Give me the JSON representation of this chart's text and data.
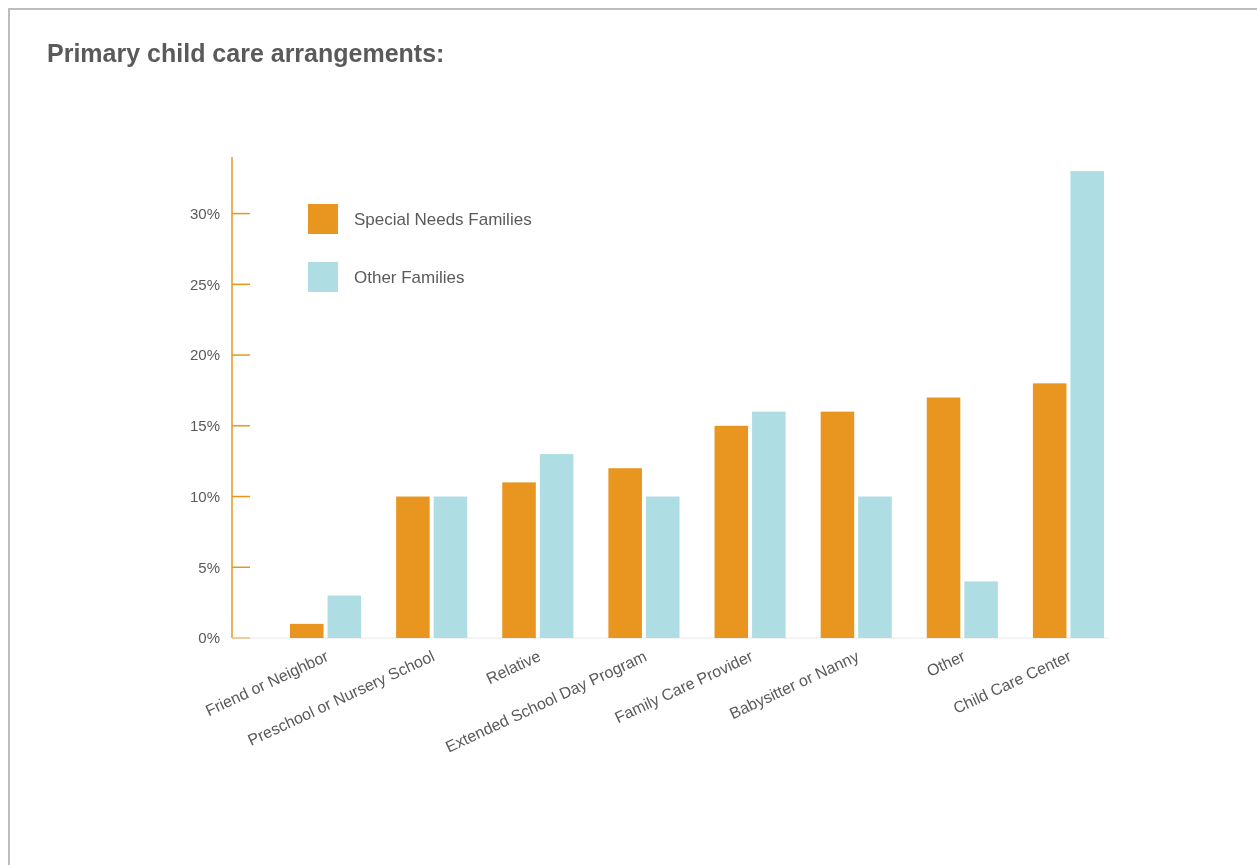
{
  "chart_data": {
    "type": "bar",
    "title": "Primary child care arrangements:",
    "categories": [
      "Friend or Neighbor",
      "Preschool or Nursery School",
      "Relative",
      "Extended School Day Program",
      "Family Care Provider",
      "Babysitter or Nanny",
      "Other",
      "Child Care Center"
    ],
    "series": [
      {
        "name": "Special Needs Families",
        "color": "#e8961f",
        "values": [
          1,
          10,
          11,
          12,
          15,
          16,
          17,
          18
        ]
      },
      {
        "name": "Other Families",
        "color": "#aedde3",
        "values": [
          3,
          10,
          13,
          10,
          16,
          10,
          4,
          33
        ]
      }
    ],
    "ylim": [
      0,
      34
    ],
    "yticks": [
      {
        "value": 0,
        "label": "0%"
      },
      {
        "value": 5,
        "label": "5%"
      },
      {
        "value": 10,
        "label": "10%"
      },
      {
        "value": 15,
        "label": "15%"
      },
      {
        "value": 20,
        "label": "20%"
      },
      {
        "value": 25,
        "label": "25%"
      },
      {
        "value": 30,
        "label": "30%"
      }
    ],
    "grid": false,
    "legend": "top left"
  }
}
